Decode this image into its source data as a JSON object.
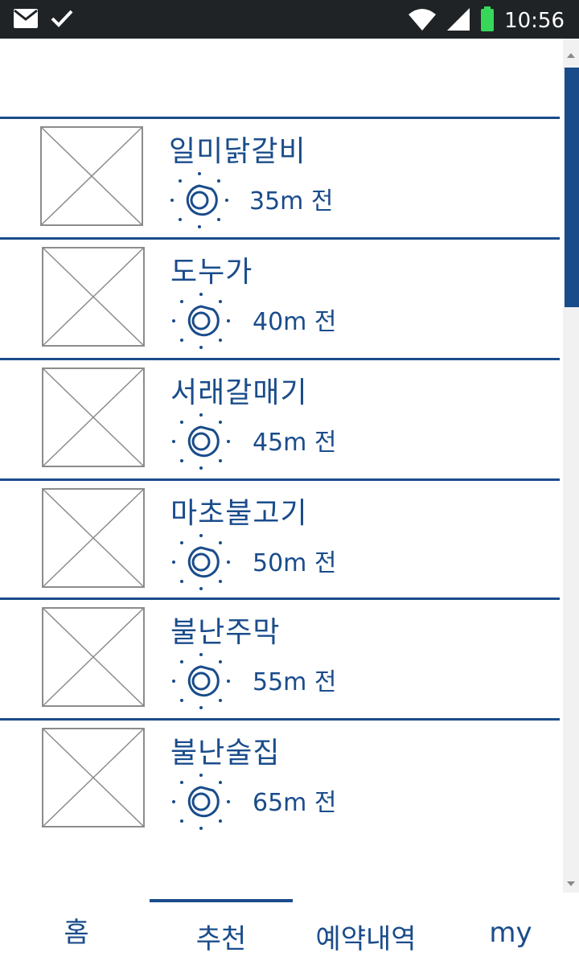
{
  "status_bar": {
    "time": "10:56",
    "left_icons": [
      "mail-icon",
      "check-icon"
    ],
    "right_icons": [
      "wifi-icon",
      "signal-icon",
      "battery-icon"
    ],
    "battery_color": "#37d85a"
  },
  "restaurants": [
    {
      "name": "일미닭갈비",
      "time": "35m 전"
    },
    {
      "name": "도누가",
      "time": "40m 전"
    },
    {
      "name": "서래갈매기",
      "time": "45m 전"
    },
    {
      "name": "마초불고기",
      "time": "50m 전"
    },
    {
      "name": "불난주막",
      "time": "55m 전"
    },
    {
      "name": "불난술집",
      "time": "65m 전"
    }
  ],
  "tabs": [
    {
      "label": "홈"
    },
    {
      "label": "추천"
    },
    {
      "label": "예약내역"
    },
    {
      "label": "my"
    }
  ],
  "active_tab": "추천",
  "colors": {
    "accent": "#1a4c8b",
    "status_bar": "#1f2326"
  }
}
